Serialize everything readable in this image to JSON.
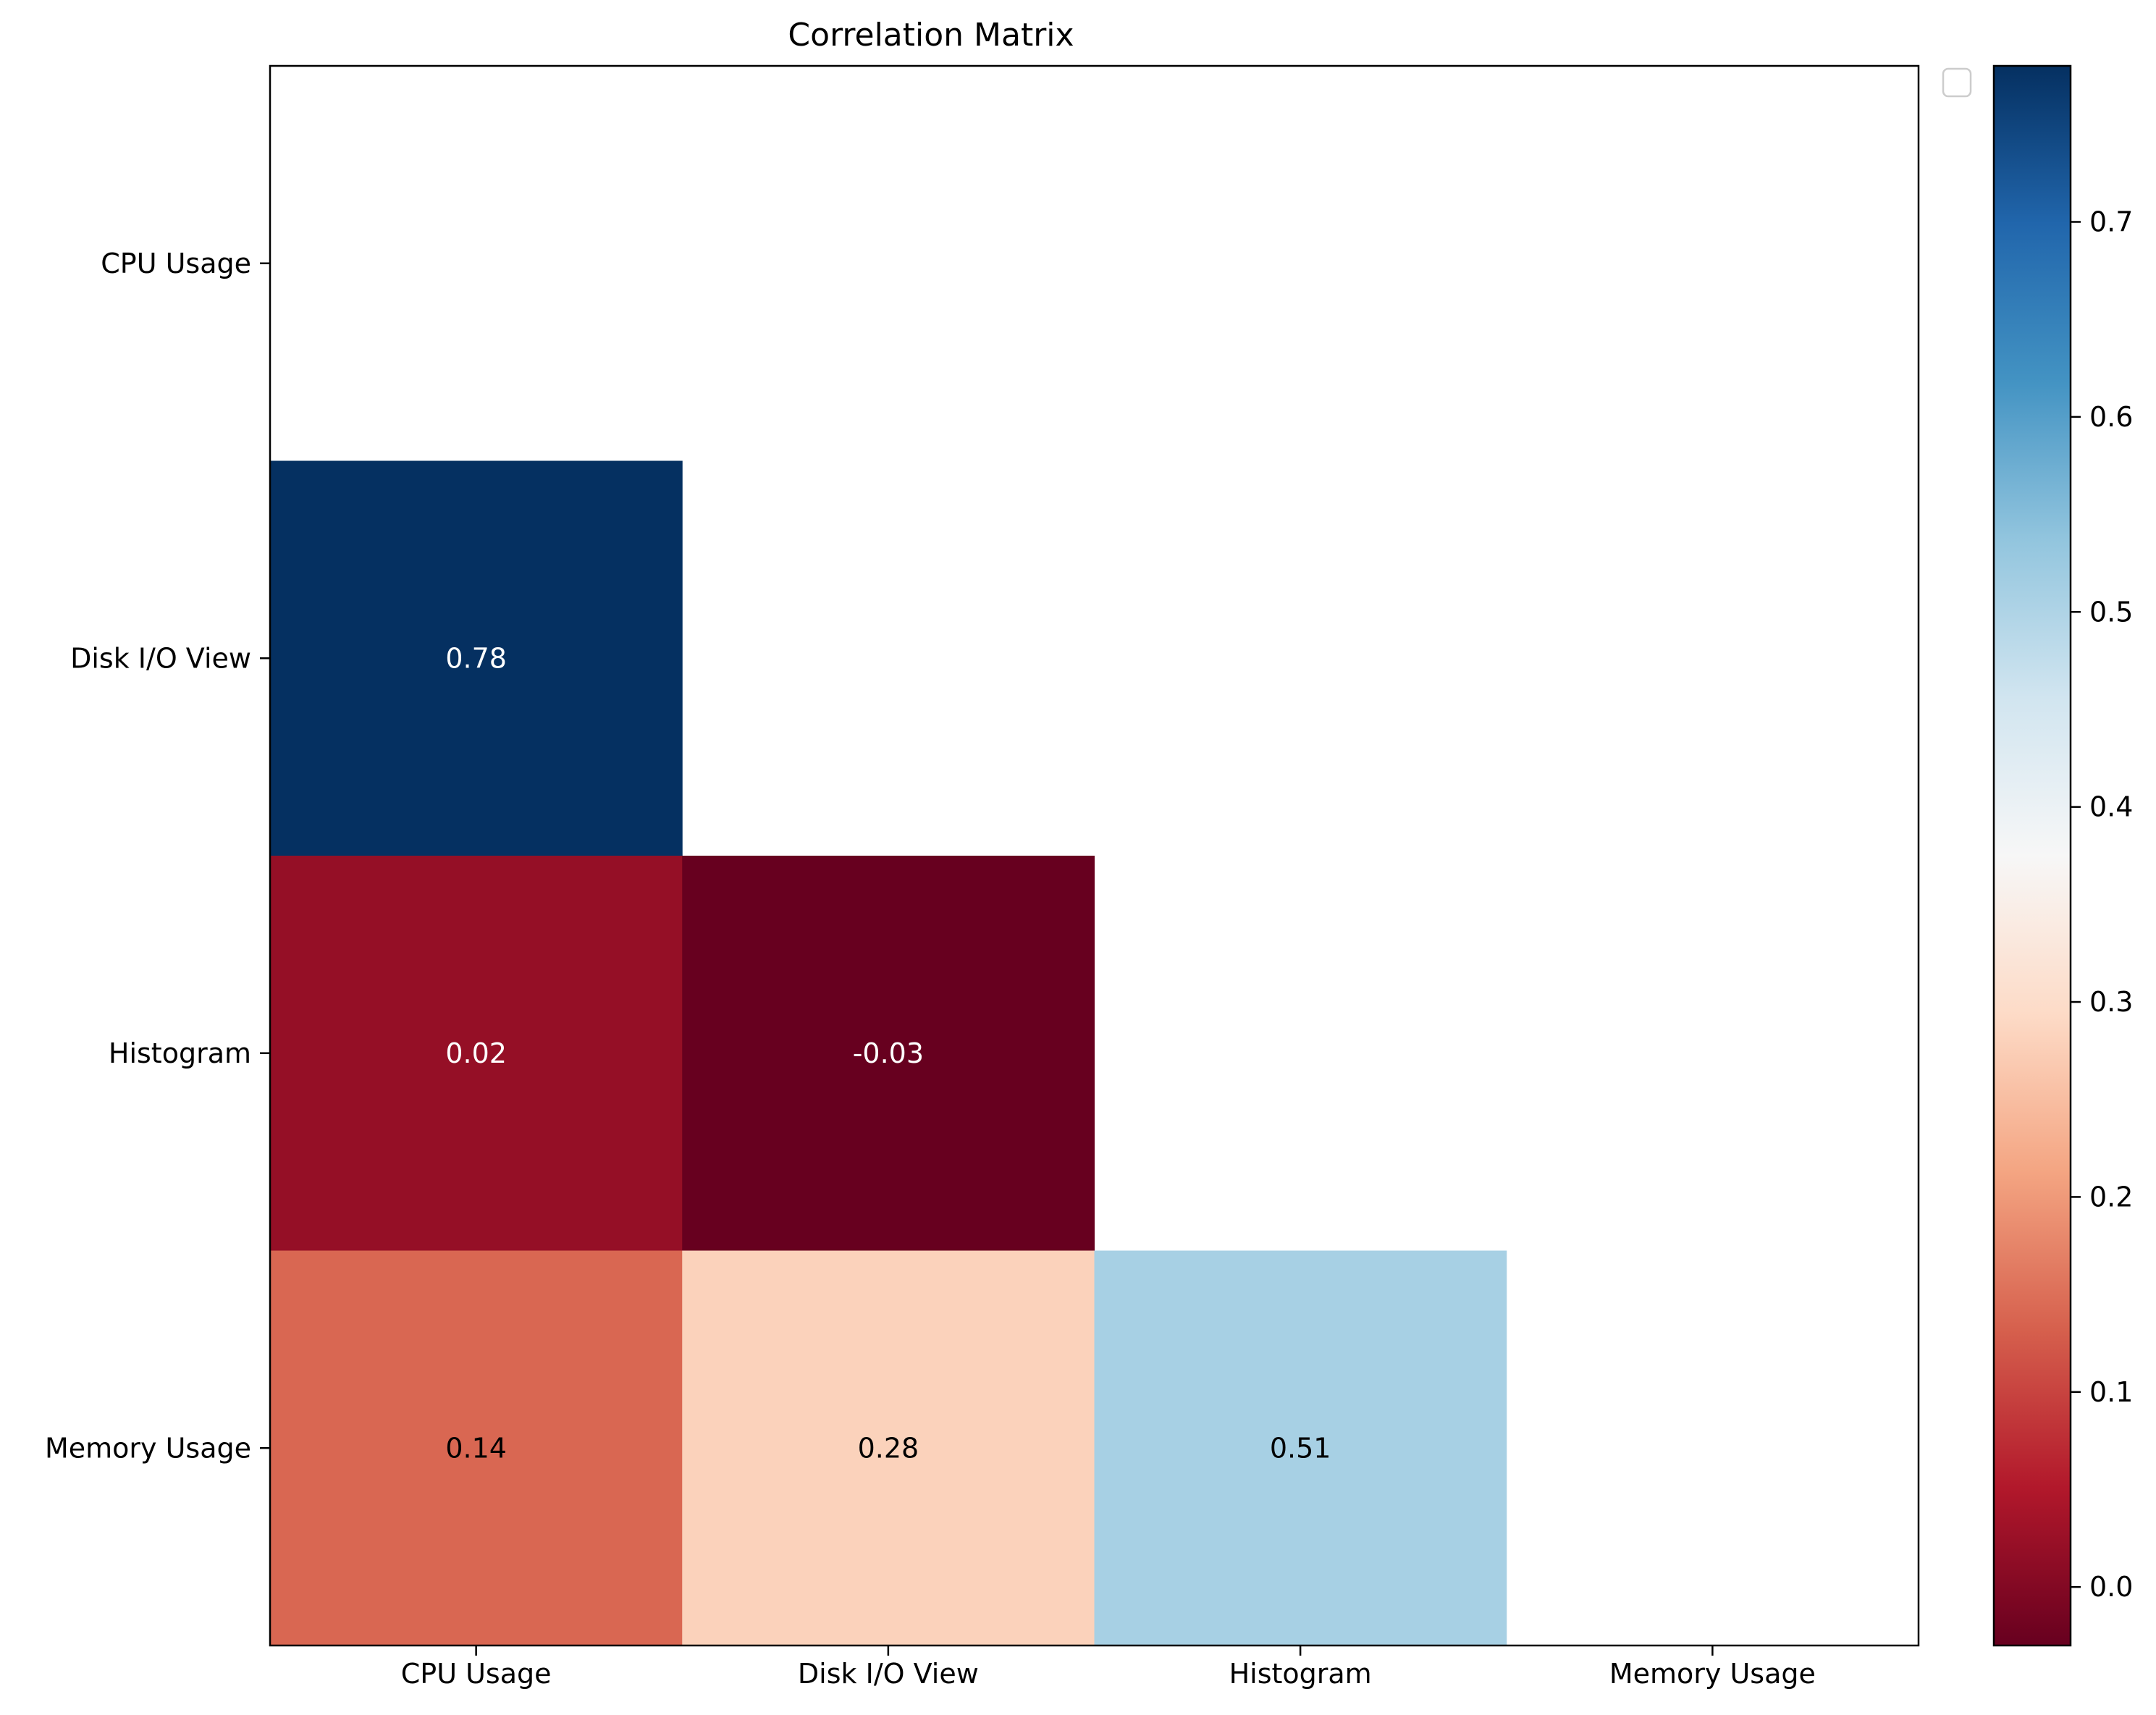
{
  "chart_data": {
    "type": "heatmap",
    "title": "Correlation Matrix",
    "xlabel": "",
    "ylabel": "",
    "x_categories": [
      "CPU Usage",
      "Disk I/O View",
      "Histogram",
      "Memory Usage"
    ],
    "y_categories": [
      "CPU Usage",
      "Disk I/O View",
      "Histogram",
      "Memory Usage"
    ],
    "mask": "upper-triangle-including-diagonal",
    "cells": [
      {
        "row": 1,
        "col": 0,
        "value": 0.78,
        "label": "0.78",
        "text_color": "#ffffff"
      },
      {
        "row": 2,
        "col": 0,
        "value": 0.02,
        "label": "0.02",
        "text_color": "#ffffff"
      },
      {
        "row": 2,
        "col": 1,
        "value": -0.03,
        "label": "-0.03",
        "text_color": "#ffffff"
      },
      {
        "row": 3,
        "col": 0,
        "value": 0.14,
        "label": "0.14",
        "text_color": "#000000"
      },
      {
        "row": 3,
        "col": 1,
        "value": 0.28,
        "label": "0.28",
        "text_color": "#000000"
      },
      {
        "row": 3,
        "col": 2,
        "value": 0.51,
        "label": "0.51",
        "text_color": "#000000"
      }
    ],
    "colormap": "RdBu",
    "vmin": -0.03,
    "vmax": 0.78,
    "colorbar": {
      "ticks": [
        0.0,
        0.1,
        0.2,
        0.3,
        0.4,
        0.5,
        0.6,
        0.7
      ],
      "tick_labels": [
        "0.0",
        "0.1",
        "0.2",
        "0.3",
        "0.4",
        "0.5",
        "0.6",
        "0.7"
      ]
    },
    "legend": {
      "placement": "upper-right-outside",
      "entries": []
    },
    "grid": false
  }
}
